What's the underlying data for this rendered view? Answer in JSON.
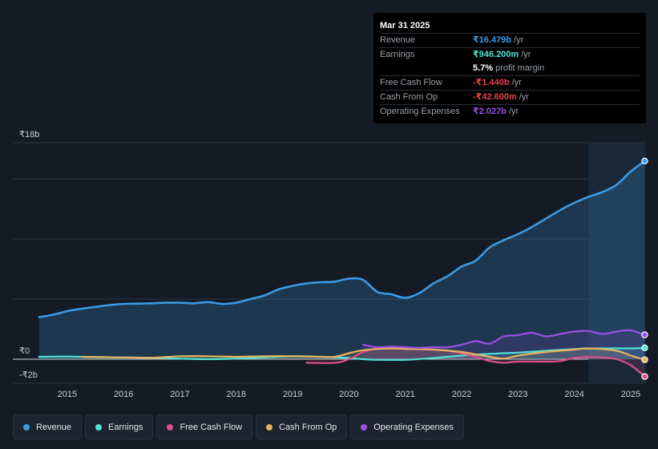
{
  "chart_data": {
    "type": "area",
    "currency": "₹",
    "ylim": [
      -2,
      18
    ],
    "y_tick_labels": [
      "₹18b",
      "₹0",
      "-₹2b"
    ],
    "x_tick_labels": [
      "2015",
      "2016",
      "2017",
      "2018",
      "2019",
      "2020",
      "2021",
      "2022",
      "2023",
      "2024",
      "2025"
    ],
    "highlight_range": [
      2024.25,
      2025.25
    ],
    "series": [
      {
        "name": "Revenue",
        "color": "#3a9be8",
        "points": [
          [
            2014.5,
            3.5
          ],
          [
            2014.75,
            3.7
          ],
          [
            2015.0,
            4.0
          ],
          [
            2015.25,
            4.2
          ],
          [
            2015.5,
            4.35
          ],
          [
            2015.75,
            4.5
          ],
          [
            2016.0,
            4.6
          ],
          [
            2016.25,
            4.62
          ],
          [
            2016.5,
            4.65
          ],
          [
            2016.75,
            4.7
          ],
          [
            2017.0,
            4.7
          ],
          [
            2017.25,
            4.65
          ],
          [
            2017.5,
            4.75
          ],
          [
            2017.75,
            4.6
          ],
          [
            2018.0,
            4.7
          ],
          [
            2018.25,
            5.0
          ],
          [
            2018.5,
            5.3
          ],
          [
            2018.75,
            5.8
          ],
          [
            2019.0,
            6.1
          ],
          [
            2019.25,
            6.3
          ],
          [
            2019.5,
            6.4
          ],
          [
            2019.75,
            6.45
          ],
          [
            2020.0,
            6.7
          ],
          [
            2020.25,
            6.6
          ],
          [
            2020.5,
            5.6
          ],
          [
            2020.75,
            5.4
          ],
          [
            2021.0,
            5.1
          ],
          [
            2021.25,
            5.5
          ],
          [
            2021.5,
            6.3
          ],
          [
            2021.75,
            6.9
          ],
          [
            2022.0,
            7.7
          ],
          [
            2022.25,
            8.2
          ],
          [
            2022.5,
            9.3
          ],
          [
            2022.75,
            9.9
          ],
          [
            2023.0,
            10.4
          ],
          [
            2023.25,
            11.0
          ],
          [
            2023.5,
            11.7
          ],
          [
            2023.75,
            12.4
          ],
          [
            2024.0,
            13.0
          ],
          [
            2024.25,
            13.5
          ],
          [
            2024.5,
            13.9
          ],
          [
            2024.75,
            14.5
          ],
          [
            2025.0,
            15.6
          ],
          [
            2025.25,
            16.479
          ]
        ]
      },
      {
        "name": "Earnings",
        "color": "#4de3d6",
        "points": [
          [
            2014.5,
            0.2
          ],
          [
            2015.0,
            0.22
          ],
          [
            2015.5,
            0.18
          ],
          [
            2016.0,
            0.15
          ],
          [
            2016.5,
            0.12
          ],
          [
            2017.0,
            0.05
          ],
          [
            2017.5,
            0.0
          ],
          [
            2018.0,
            0.05
          ],
          [
            2018.5,
            0.15
          ],
          [
            2019.0,
            0.25
          ],
          [
            2019.5,
            0.2
          ],
          [
            2020.0,
            0.1
          ],
          [
            2020.25,
            0.0
          ],
          [
            2020.5,
            -0.05
          ],
          [
            2021.0,
            -0.05
          ],
          [
            2021.5,
            0.1
          ],
          [
            2022.0,
            0.3
          ],
          [
            2022.5,
            0.45
          ],
          [
            2023.0,
            0.55
          ],
          [
            2023.5,
            0.7
          ],
          [
            2024.0,
            0.85
          ],
          [
            2024.5,
            0.9
          ],
          [
            2025.0,
            0.9
          ],
          [
            2025.25,
            0.946
          ]
        ]
      },
      {
        "name": "Free Cash Flow",
        "color": "#d9508a",
        "points": [
          [
            2019.25,
            -0.3
          ],
          [
            2019.75,
            -0.3
          ],
          [
            2020.0,
            0.0
          ],
          [
            2020.25,
            0.6
          ],
          [
            2020.5,
            0.9
          ],
          [
            2020.75,
            1.0
          ],
          [
            2021.0,
            0.9
          ],
          [
            2021.25,
            0.85
          ],
          [
            2021.5,
            0.8
          ],
          [
            2021.75,
            0.7
          ],
          [
            2022.0,
            0.5
          ],
          [
            2022.25,
            0.2
          ],
          [
            2022.5,
            -0.15
          ],
          [
            2022.75,
            -0.3
          ],
          [
            2023.0,
            -0.2
          ],
          [
            2023.5,
            -0.2
          ],
          [
            2023.75,
            -0.15
          ],
          [
            2024.0,
            0.1
          ],
          [
            2024.25,
            0.2
          ],
          [
            2024.5,
            0.15
          ],
          [
            2024.75,
            0.0
          ],
          [
            2025.0,
            -0.5
          ],
          [
            2025.25,
            -1.44
          ]
        ]
      },
      {
        "name": "Cash From Op",
        "color": "#e8b25c",
        "points": [
          [
            2015.25,
            0.2
          ],
          [
            2016.0,
            0.15
          ],
          [
            2016.5,
            0.12
          ],
          [
            2017.0,
            0.25
          ],
          [
            2017.5,
            0.25
          ],
          [
            2018.0,
            0.2
          ],
          [
            2018.5,
            0.25
          ],
          [
            2019.0,
            0.25
          ],
          [
            2019.5,
            0.2
          ],
          [
            2019.75,
            0.2
          ],
          [
            2020.0,
            0.5
          ],
          [
            2020.25,
            0.75
          ],
          [
            2020.5,
            0.85
          ],
          [
            2020.75,
            0.9
          ],
          [
            2021.0,
            0.85
          ],
          [
            2021.5,
            0.8
          ],
          [
            2022.0,
            0.6
          ],
          [
            2022.25,
            0.4
          ],
          [
            2022.5,
            0.2
          ],
          [
            2022.75,
            0.05
          ],
          [
            2023.0,
            0.3
          ],
          [
            2023.5,
            0.6
          ],
          [
            2024.0,
            0.8
          ],
          [
            2024.25,
            0.9
          ],
          [
            2024.75,
            0.7
          ],
          [
            2025.0,
            0.3
          ],
          [
            2025.25,
            -0.0426
          ]
        ]
      },
      {
        "name": "Operating Expenses",
        "color": "#9b4fe8",
        "points": [
          [
            2020.25,
            1.2
          ],
          [
            2020.5,
            1.0
          ],
          [
            2020.75,
            1.05
          ],
          [
            2021.0,
            1.0
          ],
          [
            2021.25,
            0.95
          ],
          [
            2021.5,
            1.0
          ],
          [
            2021.75,
            1.0
          ],
          [
            2022.0,
            1.2
          ],
          [
            2022.25,
            1.5
          ],
          [
            2022.5,
            1.3
          ],
          [
            2022.75,
            1.9
          ],
          [
            2023.0,
            2.0
          ],
          [
            2023.25,
            2.2
          ],
          [
            2023.5,
            1.9
          ],
          [
            2023.75,
            2.1
          ],
          [
            2024.0,
            2.3
          ],
          [
            2024.25,
            2.35
          ],
          [
            2024.5,
            2.1
          ],
          [
            2024.75,
            2.3
          ],
          [
            2025.0,
            2.4
          ],
          [
            2025.25,
            2.027
          ]
        ]
      }
    ]
  },
  "tooltip": {
    "date": "Mar 31 2025",
    "rows": [
      {
        "label": "Revenue",
        "value": "₹16.479b",
        "unit": "/yr",
        "color": "#3a9be8"
      },
      {
        "label": "Earnings",
        "value": "₹946.200m",
        "unit": "/yr",
        "color": "#4de3d6"
      },
      {
        "label": "",
        "value": "5.7%",
        "unit": "profit margin",
        "color": "#ffffff"
      },
      {
        "label": "Free Cash Flow",
        "value": "-₹1.440b",
        "unit": "/yr",
        "color": "#e8424e"
      },
      {
        "label": "Cash From Op",
        "value": "-₹42.600m",
        "unit": "/yr",
        "color": "#e8424e"
      },
      {
        "label": "Operating Expenses",
        "value": "₹2.027b",
        "unit": "/yr",
        "color": "#9b4fe8"
      }
    ]
  },
  "legend": [
    {
      "label": "Revenue",
      "color": "#3a9be8"
    },
    {
      "label": "Earnings",
      "color": "#4de3d6"
    },
    {
      "label": "Free Cash Flow",
      "color": "#d9508a"
    },
    {
      "label": "Cash From Op",
      "color": "#e8b25c"
    },
    {
      "label": "Operating Expenses",
      "color": "#9b4fe8"
    }
  ]
}
